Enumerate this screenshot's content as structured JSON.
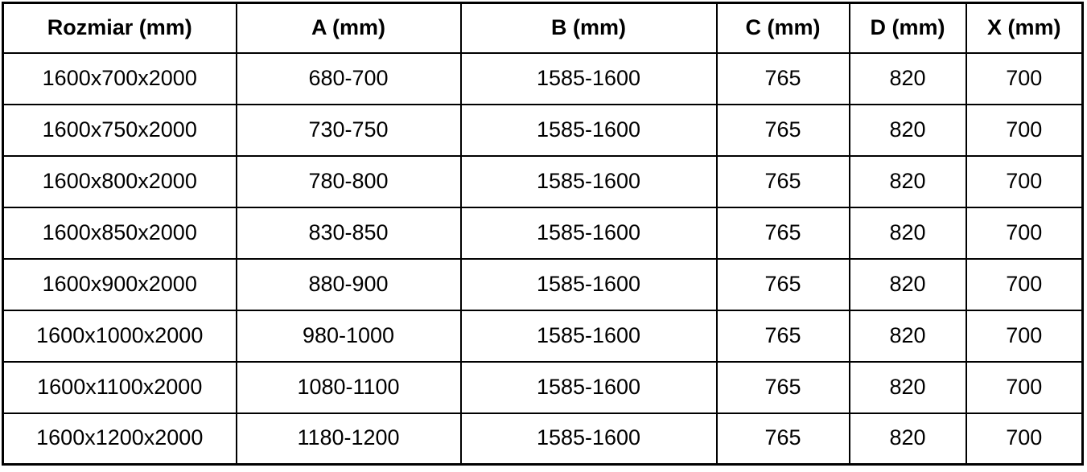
{
  "table": {
    "headers": [
      "Rozmiar (mm)",
      "A (mm)",
      "B (mm)",
      "C (mm)",
      "D (mm)",
      "X (mm)"
    ],
    "rows": [
      [
        "1600x700x2000",
        "680-700",
        "1585-1600",
        "765",
        "820",
        "700"
      ],
      [
        "1600x750x2000",
        "730-750",
        "1585-1600",
        "765",
        "820",
        "700"
      ],
      [
        "1600x800x2000",
        "780-800",
        "1585-1600",
        "765",
        "820",
        "700"
      ],
      [
        "1600x850x2000",
        "830-850",
        "1585-1600",
        "765",
        "820",
        "700"
      ],
      [
        "1600x900x2000",
        "880-900",
        "1585-1600",
        "765",
        "820",
        "700"
      ],
      [
        "1600x1000x2000",
        "980-1000",
        "1585-1600",
        "765",
        "820",
        "700"
      ],
      [
        "1600x1100x2000",
        "1080-1100",
        "1585-1600",
        "765",
        "820",
        "700"
      ],
      [
        "1600x1200x2000",
        "1180-1200",
        "1585-1600",
        "765",
        "820",
        "700"
      ]
    ]
  },
  "colors": {
    "border": "#000000",
    "text": "#000000",
    "background": "#ffffff"
  }
}
